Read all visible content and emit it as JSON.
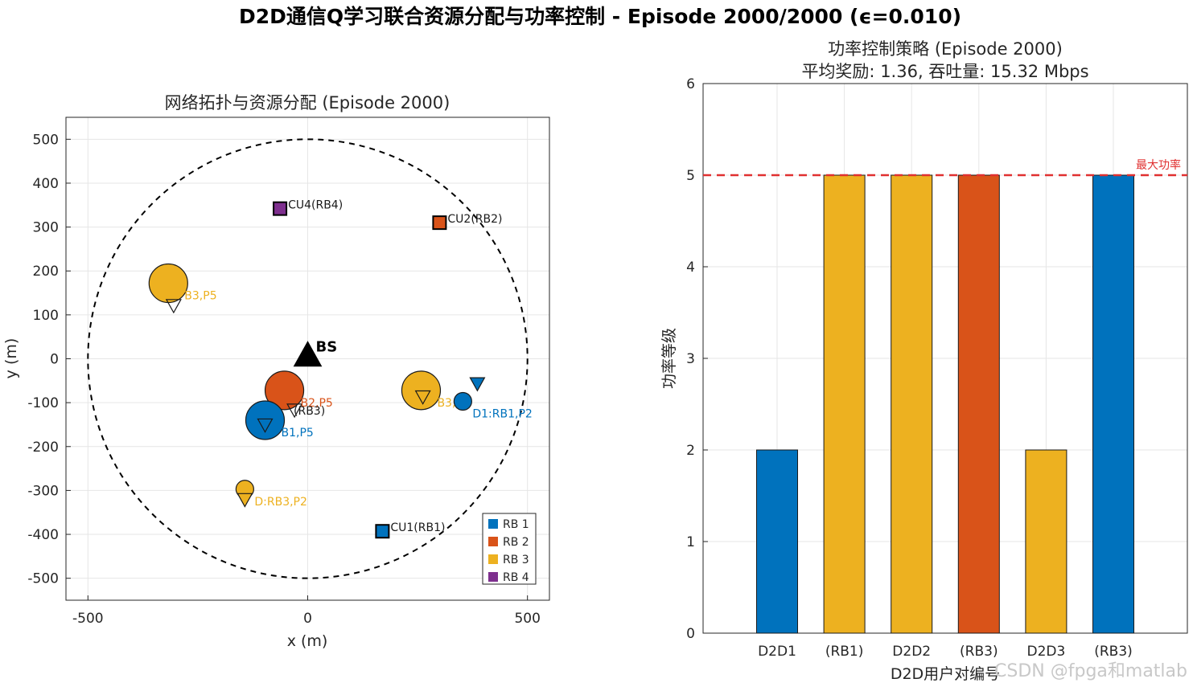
{
  "figure": {
    "suptitle": "D2D通信Q学习联合资源分配与功率控制 - Episode 2000/2000 (ϵ=0.010)",
    "watermark": "CSDN @fpga和matlab"
  },
  "colors": {
    "RB1": "#0072bd",
    "RB2": "#d95319",
    "RB3": "#edb120",
    "RB4": "#7e2f8e",
    "max_line": "#e03030",
    "circle": "#000000"
  },
  "chart_data": [
    {
      "type": "scatter",
      "title": "网络拓扑与资源分配 (Episode 2000)",
      "xlabel": "x (m)",
      "ylabel": "y (m)",
      "xlim": [
        -550,
        550
      ],
      "ylim": [
        -550,
        550
      ],
      "xticks": [
        -500,
        0,
        500
      ],
      "yticks": [
        500,
        400,
        300,
        200,
        100,
        0,
        -100,
        -200,
        -300,
        -400,
        -500
      ],
      "grid": true,
      "coverage_radius": 500,
      "bs": {
        "x": 0,
        "y": 0,
        "label": "BS"
      },
      "cellular_users": [
        {
          "x": 300,
          "y": 310,
          "rb": "RB2",
          "label": "CU2(RB2)"
        },
        {
          "x": -63,
          "y": 342,
          "rb": "RB4",
          "label": "CU4(RB4)"
        },
        {
          "x": 170,
          "y": -393,
          "rb": "RB1",
          "label": "CU1(RB1)"
        }
      ],
      "d2d_pairs": [
        {
          "tx": {
            "x": -317,
            "y": 172
          },
          "rx": {
            "x": -305,
            "y": 120
          },
          "rb": "RB3",
          "power": 5,
          "label": "B3,P5"
        },
        {
          "tx": {
            "x": -53,
            "y": -72
          },
          "rx": {
            "x": -30,
            "y": -118
          },
          "rb": "RB2",
          "power": 5,
          "label": "B2,P5"
        },
        {
          "tx": {
            "x": -97,
            "y": -140
          },
          "rx": {
            "x": -97,
            "y": -152
          },
          "rb": "RB1",
          "power": 5,
          "label": "B1,P5"
        },
        {
          "tx": {
            "x": 258,
            "y": -72
          },
          "rx": {
            "x": 262,
            "y": -88
          },
          "rb": "RB3",
          "power": 5,
          "label": "B3,P5"
        },
        {
          "tx": {
            "x": 353,
            "y": -97
          },
          "rx": {
            "x": 386,
            "y": -58
          },
          "rb": "RB1",
          "power": 2,
          "label": "D1:RB1,P2"
        },
        {
          "tx": {
            "x": -143,
            "y": -297
          },
          "rx": {
            "x": -143,
            "y": -322
          },
          "rb": "RB3",
          "power": 2,
          "label": "D:RB3,P2"
        }
      ],
      "extra_labels": [
        {
          "x": -32,
          "y": -118,
          "text": "(RB3)"
        }
      ],
      "legend": {
        "placement": "bottom-right",
        "entries": [
          "RB 1",
          "RB 2",
          "RB 3",
          "RB 4"
        ]
      }
    },
    {
      "type": "bar",
      "title": "功率控制策略 (Episode 2000)",
      "subtitle": "平均奖励: 1.36, 吞吐量: 15.32 Mbps",
      "xlabel": "D2D用户对编号",
      "ylabel": "功率等级",
      "categories": [
        "D2D1",
        "(RB1)",
        "D2D2",
        "(RB3)",
        "D2D3",
        "(RB3)"
      ],
      "values": [
        2,
        5,
        5,
        5,
        2,
        5
      ],
      "bar_rb": [
        "RB1",
        "RB3",
        "RB3",
        "RB2",
        "RB3",
        "RB1"
      ],
      "ylim": [
        0,
        6
      ],
      "yticks": [
        0,
        1,
        2,
        3,
        4,
        5,
        6
      ],
      "grid": true,
      "max_power": 5,
      "max_power_label": "最大功率"
    }
  ]
}
